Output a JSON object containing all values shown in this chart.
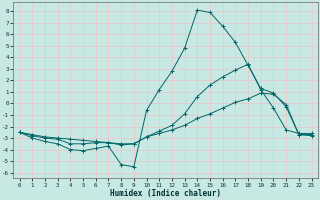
{
  "xlabel": "Humidex (Indice chaleur)",
  "xlim": [
    -0.5,
    23.5
  ],
  "ylim": [
    -6.5,
    8.8
  ],
  "bg_color": "#c8e8e4",
  "grid_color": "#e8c8cc",
  "line_color": "#006666",
  "xticks": [
    0,
    1,
    2,
    3,
    4,
    5,
    6,
    7,
    8,
    9,
    10,
    11,
    12,
    13,
    14,
    15,
    16,
    17,
    18,
    19,
    20,
    21,
    22,
    23
  ],
  "yticks": [
    -6,
    -5,
    -4,
    -3,
    -2,
    -1,
    0,
    1,
    2,
    3,
    4,
    5,
    6,
    7,
    8
  ],
  "curve1_x": [
    0,
    1,
    2,
    3,
    4,
    5,
    6,
    7,
    8,
    9,
    10,
    11,
    12,
    13,
    14,
    15,
    16,
    17,
    18,
    19,
    20,
    21,
    22,
    23
  ],
  "curve1_y": [
    -2.5,
    -3.0,
    -3.3,
    -3.5,
    -4.0,
    -4.1,
    -3.9,
    -3.7,
    -5.3,
    -5.5,
    -0.6,
    1.2,
    2.8,
    4.8,
    8.1,
    7.9,
    6.7,
    5.3,
    3.3,
    1.3,
    0.9,
    -0.3,
    -2.7,
    -2.8
  ],
  "curve2_x": [
    0,
    1,
    2,
    3,
    4,
    5,
    6,
    7,
    8,
    9,
    10,
    11,
    12,
    13,
    14,
    15,
    16,
    17,
    18,
    19,
    20,
    21,
    22,
    23
  ],
  "curve2_y": [
    -2.5,
    -2.8,
    -3.0,
    -3.1,
    -3.5,
    -3.5,
    -3.4,
    -3.4,
    -3.6,
    -3.5,
    -2.9,
    -2.4,
    -1.9,
    -0.9,
    0.6,
    1.6,
    2.3,
    2.9,
    3.4,
    1.2,
    -0.4,
    -2.3,
    -2.6,
    -2.6
  ],
  "curve3_x": [
    0,
    1,
    2,
    3,
    4,
    5,
    6,
    7,
    8,
    9,
    10,
    11,
    12,
    13,
    14,
    15,
    16,
    17,
    18,
    19,
    20,
    21,
    22,
    23
  ],
  "curve3_y": [
    -2.5,
    -2.7,
    -2.9,
    -3.0,
    -3.1,
    -3.2,
    -3.3,
    -3.4,
    -3.5,
    -3.5,
    -2.9,
    -2.6,
    -2.3,
    -1.9,
    -1.3,
    -0.9,
    -0.4,
    0.1,
    0.4,
    0.9,
    0.8,
    -0.1,
    -2.7,
    -2.7
  ],
  "xlabel_fontsize": 5.5,
  "tick_fontsize": 4.2,
  "linewidth": 0.7,
  "markersize": 2.5,
  "markeredgewidth": 0.7
}
